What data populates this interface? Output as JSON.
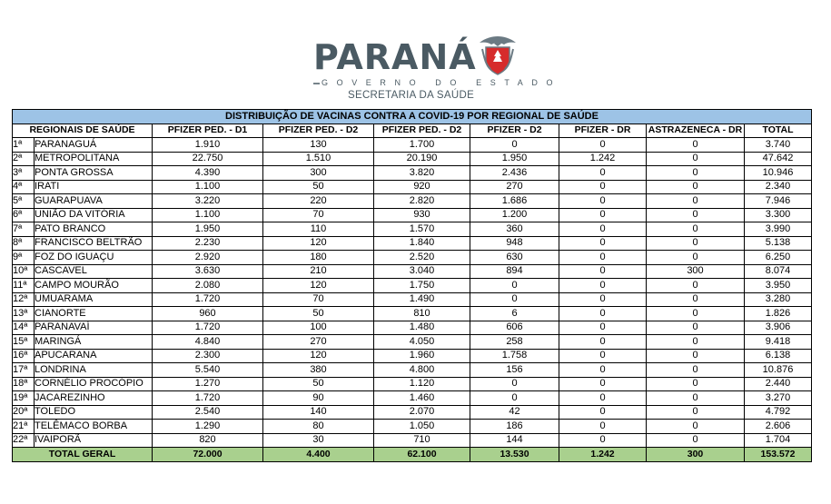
{
  "header": {
    "logo_text": "PARANÁ",
    "gov_text": "GOVERNO DO ESTADO",
    "dept_text": "SECRETARIA DA SAÚDE"
  },
  "colors": {
    "title_bg": "#9dc3e6",
    "total_bg": "#a9d08e",
    "logo": "#4a5a63"
  },
  "table": {
    "title": "DISTRIBUIÇÃO DE VACINAS CONTRA A COVID-19 POR REGIONAL DE SAÚDE",
    "columns": [
      "REGIONAIS DE SAÚDE",
      "PFIZER PED. - D1",
      "PFIZER PED. - D2",
      "PFIZER PED. - D2",
      "PFIZER - D2",
      "PFIZER - DR",
      "ASTRAZENECA - DR",
      "TOTAL"
    ],
    "rows": [
      {
        "idx": "1ª",
        "name": "PARANAGUÁ",
        "v": [
          "1.910",
          "130",
          "1.700",
          "0",
          "0",
          "0",
          "3.740"
        ]
      },
      {
        "idx": "2ª",
        "name": "METROPOLITANA",
        "v": [
          "22.750",
          "1.510",
          "20.190",
          "1.950",
          "1.242",
          "0",
          "47.642"
        ]
      },
      {
        "idx": "3ª",
        "name": "PONTA GROSSA",
        "v": [
          "4.390",
          "300",
          "3.820",
          "2.436",
          "0",
          "0",
          "10.946"
        ]
      },
      {
        "idx": "4ª",
        "name": "IRATI",
        "v": [
          "1.100",
          "50",
          "920",
          "270",
          "0",
          "0",
          "2.340"
        ]
      },
      {
        "idx": "5ª",
        "name": "GUARAPUAVA",
        "v": [
          "3.220",
          "220",
          "2.820",
          "1.686",
          "0",
          "0",
          "7.946"
        ]
      },
      {
        "idx": "6ª",
        "name": "UNIÃO DA VITÓRIA",
        "v": [
          "1.100",
          "70",
          "930",
          "1.200",
          "0",
          "0",
          "3.300"
        ]
      },
      {
        "idx": "7ª",
        "name": "PATO BRANCO",
        "v": [
          "1.950",
          "110",
          "1.570",
          "360",
          "0",
          "0",
          "3.990"
        ]
      },
      {
        "idx": "8ª",
        "name": "FRANCISCO BELTRÃO",
        "v": [
          "2.230",
          "120",
          "1.840",
          "948",
          "0",
          "0",
          "5.138"
        ]
      },
      {
        "idx": "9ª",
        "name": "FOZ DO IGUAÇU",
        "v": [
          "2.920",
          "180",
          "2.520",
          "630",
          "0",
          "0",
          "6.250"
        ]
      },
      {
        "idx": "10ª",
        "name": "CASCAVEL",
        "v": [
          "3.630",
          "210",
          "3.040",
          "894",
          "0",
          "300",
          "8.074"
        ]
      },
      {
        "idx": "11ª",
        "name": "CAMPO MOURÃO",
        "v": [
          "2.080",
          "120",
          "1.750",
          "0",
          "0",
          "0",
          "3.950"
        ]
      },
      {
        "idx": "12ª",
        "name": "UMUARAMA",
        "v": [
          "1.720",
          "70",
          "1.490",
          "0",
          "0",
          "0",
          "3.280"
        ]
      },
      {
        "idx": "13ª",
        "name": "CIANORTE",
        "v": [
          "960",
          "50",
          "810",
          "6",
          "0",
          "0",
          "1.826"
        ]
      },
      {
        "idx": "14ª",
        "name": "PARANAVAÍ",
        "v": [
          "1.720",
          "100",
          "1.480",
          "606",
          "0",
          "0",
          "3.906"
        ]
      },
      {
        "idx": "15ª",
        "name": "MARINGÁ",
        "v": [
          "4.840",
          "270",
          "4.050",
          "258",
          "0",
          "0",
          "9.418"
        ]
      },
      {
        "idx": "16ª",
        "name": "APUCARANA",
        "v": [
          "2.300",
          "120",
          "1.960",
          "1.758",
          "0",
          "0",
          "6.138"
        ]
      },
      {
        "idx": "17ª",
        "name": "LONDRINA",
        "v": [
          "5.540",
          "380",
          "4.800",
          "156",
          "0",
          "0",
          "10.876"
        ]
      },
      {
        "idx": "18ª",
        "name": "CORNÉLIO PROCÓPIO",
        "v": [
          "1.270",
          "50",
          "1.120",
          "0",
          "0",
          "0",
          "2.440"
        ]
      },
      {
        "idx": "19ª",
        "name": "JACAREZINHO",
        "v": [
          "1.720",
          "90",
          "1.460",
          "0",
          "0",
          "0",
          "3.270"
        ]
      },
      {
        "idx": "20ª",
        "name": "TOLEDO",
        "v": [
          "2.540",
          "140",
          "2.070",
          "42",
          "0",
          "0",
          "4.792"
        ]
      },
      {
        "idx": "21ª",
        "name": "TELÊMACO BORBA",
        "v": [
          "1.290",
          "80",
          "1.050",
          "186",
          "0",
          "0",
          "2.606"
        ]
      },
      {
        "idx": "22ª",
        "name": "IVAIPORÃ",
        "v": [
          "820",
          "30",
          "710",
          "144",
          "0",
          "0",
          "1.704"
        ]
      }
    ],
    "total": {
      "label": "TOTAL GERAL",
      "v": [
        "72.000",
        "4.400",
        "62.100",
        "13.530",
        "1.242",
        "300",
        "153.572"
      ]
    }
  }
}
